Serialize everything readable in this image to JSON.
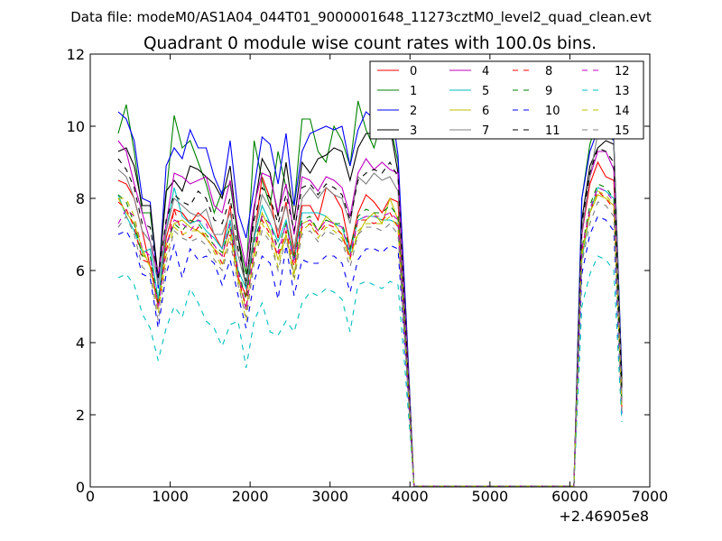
{
  "chart_data": {
    "type": "line",
    "suptitle": "Data file: modeM0/AS1A04_044T01_9000001648_11273cztM0_level2_quad_clean.evt",
    "title": "Quadrant 0 module wise count rates with 100.0s bins.",
    "xlabel": "",
    "ylabel": "",
    "x_offset_label": "+2.46905e8",
    "xlim": [
      0,
      7000
    ],
    "ylim": [
      0,
      12
    ],
    "xticks": [
      "0",
      "1000",
      "2000",
      "3000",
      "4000",
      "5000",
      "6000",
      "7000"
    ],
    "yticks": [
      "0",
      "2",
      "4",
      "6",
      "8",
      "10",
      "12"
    ],
    "grid": false,
    "legend_position": "top-right",
    "legend_columns": 4,
    "x": [
      350,
      450,
      550,
      650,
      750,
      850,
      950,
      1050,
      1150,
      1250,
      1350,
      1450,
      1550,
      1650,
      1750,
      1850,
      1950,
      2050,
      2150,
      2250,
      2350,
      2450,
      2550,
      2650,
      2750,
      2850,
      2950,
      3050,
      3150,
      3250,
      3350,
      3450,
      3550,
      3650,
      3750,
      3850,
      3950,
      4050,
      4150,
      6050,
      6150,
      6250,
      6350,
      6450,
      6550,
      6650
    ],
    "series": [
      {
        "name": "0",
        "color": "#ff0000",
        "dash": "solid",
        "values": [
          8.5,
          8.4,
          8.0,
          7.1,
          6.1,
          5.1,
          6.9,
          7.7,
          7.6,
          7.3,
          7.6,
          7.4,
          7.0,
          6.6,
          7.8,
          5.8,
          5.3,
          6.9,
          8.6,
          8.0,
          6.9,
          7.9,
          6.4,
          7.8,
          7.8,
          7.4,
          8.3,
          8.1,
          7.7,
          6.6,
          7.6,
          8.1,
          7.9,
          7.6,
          8.0,
          7.9,
          3.9,
          0.02,
          0.02,
          0.02,
          7.0,
          8.4,
          9.0,
          8.6,
          8.5,
          2.9
        ]
      },
      {
        "name": "1",
        "color": "#008000",
        "dash": "solid",
        "values": [
          9.8,
          10.6,
          9.3,
          7.6,
          7.6,
          5.8,
          8.1,
          10.3,
          9.4,
          9.6,
          9.0,
          8.4,
          7.6,
          8.2,
          8.4,
          6.9,
          5.9,
          9.6,
          8.5,
          7.8,
          9.3,
          8.3,
          7.8,
          10.2,
          10.2,
          9.3,
          9.0,
          10.0,
          9.6,
          8.9,
          10.7,
          9.9,
          9.4,
          10.2,
          10.1,
          9.0,
          4.8,
          0.02,
          0.02,
          0.02,
          8.0,
          9.5,
          10.2,
          9.8,
          9.6,
          3.0
        ]
      },
      {
        "name": "2",
        "color": "#0000ff",
        "dash": "solid",
        "values": [
          10.4,
          10.2,
          9.6,
          8.0,
          7.9,
          5.5,
          8.9,
          9.4,
          9.1,
          9.9,
          9.4,
          9.4,
          8.6,
          8.1,
          9.6,
          7.6,
          6.9,
          8.3,
          9.7,
          9.5,
          8.4,
          9.8,
          7.8,
          9.3,
          9.8,
          9.9,
          10.0,
          9.9,
          10.0,
          8.9,
          9.9,
          10.4,
          10.2,
          10.3,
          10.8,
          9.2,
          4.7,
          0.02,
          0.02,
          0.02,
          8.0,
          9.3,
          9.9,
          9.9,
          9.6,
          3.1
        ]
      },
      {
        "name": "3",
        "color": "#000000",
        "dash": "solid",
        "values": [
          9.3,
          9.4,
          8.9,
          7.8,
          7.8,
          5.8,
          8.2,
          8.5,
          8.2,
          8.9,
          8.8,
          8.6,
          8.4,
          8.0,
          8.9,
          6.9,
          5.5,
          7.7,
          9.1,
          8.7,
          7.5,
          9.0,
          7.4,
          9.0,
          8.7,
          9.1,
          9.2,
          9.4,
          9.3,
          8.5,
          9.4,
          9.8,
          9.8,
          9.7,
          10.0,
          8.7,
          4.4,
          0.02,
          0.02,
          0.02,
          7.4,
          8.9,
          9.4,
          9.6,
          9.5,
          2.8
        ]
      },
      {
        "name": "4",
        "color": "#bf00bf",
        "dash": "solid",
        "values": [
          9.6,
          9.3,
          8.4,
          7.6,
          6.8,
          5.9,
          7.3,
          8.7,
          8.6,
          8.4,
          8.5,
          8.6,
          7.8,
          7.6,
          8.5,
          7.1,
          6.1,
          7.8,
          8.7,
          8.6,
          7.6,
          8.4,
          7.0,
          8.6,
          8.5,
          8.2,
          8.6,
          8.5,
          8.3,
          7.5,
          8.7,
          9.1,
          8.8,
          9.0,
          8.8,
          8.7,
          4.4,
          0.02,
          0.02,
          0.02,
          7.0,
          8.6,
          9.3,
          9.3,
          8.8,
          2.5
        ]
      },
      {
        "name": "5",
        "color": "#00bfbf",
        "dash": "solid",
        "values": [
          8.1,
          7.5,
          7.1,
          6.5,
          6.6,
          5.2,
          7.1,
          8.3,
          7.5,
          7.3,
          7.4,
          7.1,
          6.9,
          6.6,
          7.4,
          6.0,
          5.5,
          6.9,
          7.8,
          7.3,
          6.8,
          7.4,
          6.3,
          7.6,
          7.6,
          7.6,
          7.5,
          7.3,
          7.2,
          6.5,
          7.4,
          7.5,
          7.5,
          7.4,
          7.4,
          7.3,
          4.0,
          0.02,
          0.02,
          0.02,
          6.3,
          7.6,
          8.3,
          8.2,
          8.0,
          2.4
        ]
      },
      {
        "name": "6",
        "color": "#bfbf00",
        "dash": "solid",
        "values": [
          8.0,
          7.6,
          7.3,
          6.6,
          6.1,
          5.0,
          6.7,
          7.3,
          7.4,
          7.2,
          7.1,
          6.9,
          6.6,
          6.4,
          7.2,
          5.8,
          4.9,
          6.5,
          7.6,
          7.1,
          6.3,
          7.0,
          5.9,
          7.3,
          7.4,
          7.1,
          7.5,
          7.3,
          7.0,
          6.4,
          7.0,
          7.4,
          7.6,
          7.3,
          8.0,
          7.4,
          3.7,
          0.02,
          0.02,
          0.02,
          6.4,
          7.6,
          8.1,
          8.0,
          7.8,
          2.3
        ]
      },
      {
        "name": "7",
        "color": "#808080",
        "dash": "solid",
        "values": [
          8.8,
          8.6,
          8.0,
          7.1,
          6.8,
          5.6,
          7.1,
          8.0,
          7.8,
          7.6,
          7.5,
          7.7,
          7.0,
          7.0,
          7.6,
          6.4,
          5.6,
          7.0,
          8.1,
          7.7,
          7.1,
          7.8,
          6.6,
          8.0,
          8.3,
          8.0,
          8.3,
          8.1,
          8.0,
          7.3,
          8.6,
          8.4,
          8.7,
          8.5,
          8.6,
          8.2,
          4.1,
          0.02,
          0.02,
          0.02,
          7.1,
          8.6,
          9.8,
          10.1,
          9.7,
          2.6
        ]
      },
      {
        "name": "8",
        "color": "#ff0000",
        "dash": "dashed",
        "values": [
          7.9,
          7.7,
          7.2,
          6.3,
          6.2,
          5.0,
          6.5,
          7.7,
          7.0,
          6.9,
          7.2,
          6.9,
          6.6,
          6.2,
          7.0,
          5.8,
          5.0,
          6.5,
          7.4,
          7.0,
          6.4,
          7.1,
          6.1,
          7.2,
          7.3,
          7.0,
          7.3,
          7.2,
          7.0,
          6.3,
          7.4,
          7.4,
          7.3,
          7.4,
          7.6,
          7.2,
          3.7,
          0.02,
          0.02,
          0.02,
          6.5,
          7.6,
          8.2,
          8.0,
          7.7,
          2.2
        ]
      },
      {
        "name": "9",
        "color": "#008000",
        "dash": "dashed",
        "values": [
          8.1,
          7.9,
          7.3,
          6.4,
          6.4,
          5.1,
          6.7,
          7.3,
          7.1,
          7.4,
          7.3,
          7.0,
          6.7,
          6.5,
          7.2,
          6.0,
          5.2,
          6.8,
          7.5,
          7.3,
          6.6,
          7.3,
          6.3,
          7.4,
          7.5,
          7.1,
          7.4,
          7.3,
          7.3,
          6.6,
          7.5,
          7.7,
          7.6,
          7.6,
          7.8,
          7.5,
          3.8,
          0.02,
          0.02,
          0.02,
          6.6,
          7.8,
          8.4,
          8.3,
          8.0,
          2.3
        ]
      },
      {
        "name": "10",
        "color": "#0000ff",
        "dash": "dashed",
        "values": [
          7.0,
          7.1,
          6.7,
          5.9,
          5.8,
          4.4,
          5.9,
          6.7,
          5.8,
          6.6,
          6.3,
          6.4,
          6.2,
          5.6,
          6.3,
          5.3,
          4.4,
          5.7,
          6.4,
          6.2,
          5.2,
          6.7,
          5.3,
          6.3,
          6.2,
          6.2,
          6.4,
          6.4,
          6.2,
          5.4,
          6.3,
          6.6,
          6.6,
          6.5,
          6.7,
          6.6,
          3.4,
          0.02,
          0.02,
          0.02,
          5.9,
          7.0,
          7.5,
          7.4,
          7.1,
          2.0
        ]
      },
      {
        "name": "11",
        "color": "#000000",
        "dash": "dashed",
        "values": [
          9.1,
          8.8,
          8.3,
          7.3,
          7.2,
          5.8,
          7.4,
          8.1,
          7.9,
          7.8,
          8.2,
          8.0,
          7.4,
          7.3,
          8.0,
          6.6,
          5.7,
          7.4,
          8.3,
          8.0,
          7.3,
          8.1,
          7.1,
          8.3,
          8.4,
          8.1,
          8.4,
          8.3,
          8.1,
          7.4,
          8.5,
          8.7,
          8.8,
          8.7,
          9.0,
          8.6,
          4.2,
          0.02,
          0.02,
          0.02,
          7.3,
          8.7,
          9.4,
          9.3,
          9.0,
          2.7
        ]
      },
      {
        "name": "12",
        "color": "#bf00bf",
        "dash": "dashed",
        "values": [
          7.3,
          7.7,
          7.5,
          6.6,
          6.4,
          4.9,
          6.7,
          7.4,
          7.3,
          7.1,
          7.4,
          7.3,
          6.7,
          6.4,
          7.3,
          6.0,
          4.9,
          6.6,
          7.5,
          7.3,
          6.5,
          7.3,
          6.2,
          7.3,
          7.4,
          7.1,
          7.4,
          7.3,
          7.2,
          6.4,
          7.4,
          7.5,
          7.5,
          7.5,
          7.6,
          7.4,
          3.7,
          0.02,
          0.02,
          0.02,
          6.6,
          7.7,
          8.3,
          8.2,
          7.9,
          2.3
        ]
      },
      {
        "name": "13",
        "color": "#00bfbf",
        "dash": "dashed",
        "values": [
          5.8,
          5.9,
          5.6,
          4.8,
          4.4,
          3.5,
          4.4,
          5.0,
          4.7,
          5.5,
          5.1,
          4.6,
          4.4,
          3.9,
          4.5,
          4.6,
          3.3,
          4.6,
          5.1,
          4.3,
          4.2,
          4.6,
          4.3,
          5.1,
          5.4,
          5.3,
          5.5,
          5.4,
          5.2,
          4.3,
          5.6,
          5.7,
          5.6,
          5.5,
          5.7,
          5.6,
          2.9,
          0.02,
          0.02,
          0.02,
          5.0,
          5.9,
          6.4,
          6.3,
          6.0,
          1.8
        ]
      },
      {
        "name": "14",
        "color": "#bfbf00",
        "dash": "dashed",
        "values": [
          8.0,
          8.0,
          7.5,
          6.5,
          6.1,
          4.8,
          6.4,
          7.2,
          7.0,
          7.1,
          7.1,
          7.0,
          6.5,
          6.1,
          7.0,
          5.7,
          4.6,
          6.3,
          7.3,
          6.9,
          6.1,
          7.0,
          5.7,
          7.1,
          7.3,
          6.9,
          7.2,
          7.1,
          6.9,
          6.3,
          7.1,
          7.3,
          7.3,
          7.3,
          7.5,
          7.2,
          3.6,
          0.02,
          0.02,
          0.02,
          6.5,
          7.6,
          8.2,
          8.1,
          7.8,
          2.2
        ]
      },
      {
        "name": "15",
        "color": "#808080",
        "dash": "dashed",
        "values": [
          7.2,
          7.5,
          7.0,
          6.1,
          5.9,
          4.6,
          6.2,
          7.1,
          6.9,
          6.8,
          6.9,
          6.7,
          6.3,
          6.0,
          6.8,
          5.6,
          4.7,
          6.2,
          7.1,
          6.8,
          6.0,
          6.9,
          5.8,
          7.0,
          7.1,
          6.8,
          7.1,
          7.0,
          6.8,
          6.1,
          7.0,
          7.2,
          7.2,
          7.1,
          7.3,
          7.0,
          3.5,
          0.02,
          0.02,
          0.02,
          6.2,
          7.3,
          7.9,
          7.8,
          7.5,
          2.1
        ]
      }
    ]
  }
}
